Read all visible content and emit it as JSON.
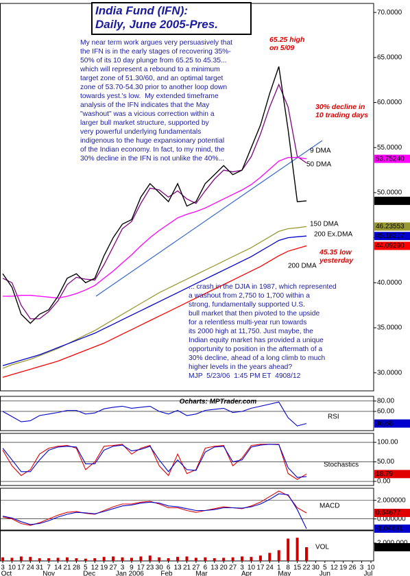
{
  "chart_data": [
    {
      "type": "line",
      "title": "India Fund (IFN):",
      "subtitle": "Daily, June 2005-Pres.",
      "text_blocks": [
        "My near term work argues very persuasively that\nthe IFN is in the early stages of recovering 35%-\n50% of its 10 day plunge from 65.25 to 45.35...\nwhich will represent a rebound to a minimum\ntarget zone of 51.30/60, and an optimal target\nzone of 53.70-54.30 prior to another loop down\ntowards yest.'s low.  My extended timeframe\nanalysis of the IFN indicates that the May\n\"washout\" was a vicious correction within a\nlarger bull market structure, supported by\nvery powerful underlying fundamentals\nindigenous to the huge expansionary potential\nof the Indian economy. In fact, to my mind, the\n30% decline in the IFN is not unlike the 40%...",
        "... crash in the DJIA in 1987, which represented\na washout from 2,750 to 1,700 within a\nstrong, fundamentally supported U.S.\nbull market that then pivoted to the upside\nfor a relentless multi-year run towards\nits 2000 high at 11,750. Just maybe, the\nIndian equity market has provided a unique\nopportunity to position in the aftermath of a\n30% decline, ahead of a long climb to much\nhigher levels in the years ahead?\nMJP  5/23/06  1:45 PM ET  4908/12"
      ],
      "annotations": [
        {
          "text": "65.25 high\non 5/09",
          "color": "#e00000"
        },
        {
          "text": "30% decline in\n10 trading days",
          "color": "#e00000"
        },
        {
          "text": "45.35 low\nyesterday",
          "color": "#e00000"
        }
      ],
      "x": [
        0,
        1,
        2,
        3,
        4,
        5,
        6,
        7,
        8,
        9,
        10,
        11,
        12,
        13,
        14,
        15,
        16,
        17,
        18,
        19,
        20,
        21,
        22,
        23,
        24,
        25,
        26,
        27,
        28,
        29,
        30,
        31,
        32,
        33
      ],
      "values": [
        41,
        39.5,
        36.5,
        35.5,
        36.5,
        37,
        38.5,
        40.5,
        41,
        40,
        40.5,
        43,
        45,
        46.5,
        47,
        49.5,
        51,
        50,
        49,
        51,
        48.5,
        49,
        51,
        52,
        53,
        52,
        52.5,
        55,
        57.5,
        61,
        64,
        57,
        49,
        49.09
      ],
      "color": "#000000",
      "end_label": "49.0900",
      "series": [
        {
          "name": "9 DMA",
          "color": "#800080",
          "end_label": null,
          "values": [
            40.5,
            40,
            37.5,
            36,
            36,
            36.8,
            38,
            39.8,
            40.6,
            40.4,
            40.3,
            42,
            44,
            46,
            46.8,
            48.8,
            50.5,
            50.3,
            49.5,
            50.2,
            49.3,
            48.8,
            50.2,
            51.5,
            52.5,
            52.3,
            52.5,
            54,
            56.5,
            59.5,
            62,
            59.5,
            54,
            53.3
          ]
        },
        {
          "name": "50 DMA",
          "color": "#ff00ff",
          "end_label": "53.75240",
          "values": [
            38.5,
            38.5,
            38.6,
            38.6,
            38.5,
            38.4,
            38.3,
            38.5,
            38.8,
            39.2,
            39.7,
            40.5,
            41.3,
            42.2,
            43.1,
            44.1,
            45,
            45.8,
            46.5,
            47.2,
            47.6,
            47.9,
            48.3,
            48.8,
            49.3,
            49.8,
            50.3,
            50.9,
            51.7,
            52.6,
            53.5,
            53.9,
            53.9,
            53.7524
          ]
        },
        {
          "name": "150 DMA",
          "color": "#999933",
          "end_label": "46.23553",
          "values": [
            30.5,
            30.9,
            31.2,
            31.5,
            31.9,
            32.3,
            32.7,
            33.2,
            33.7,
            34.2,
            34.7,
            35.3,
            35.9,
            36.5,
            37.1,
            37.7,
            38.3,
            38.9,
            39.4,
            39.9,
            40.4,
            40.9,
            41.4,
            41.9,
            42.4,
            42.9,
            43.4,
            43.9,
            44.5,
            45.1,
            45.7,
            46.0,
            46.1,
            46.23553
          ]
        },
        {
          "name": "200 Ex.DMA",
          "color": "#0000cc",
          "end_label": "45.18217",
          "values": [
            30.8,
            31.1,
            31.4,
            31.7,
            32.0,
            32.4,
            32.8,
            33.2,
            33.6,
            34.0,
            34.4,
            34.9,
            35.4,
            35.9,
            36.4,
            36.9,
            37.4,
            37.9,
            38.4,
            38.9,
            39.4,
            39.9,
            40.4,
            40.9,
            41.4,
            41.9,
            42.4,
            42.9,
            43.5,
            44.1,
            44.7,
            45.0,
            45.1,
            45.18217
          ]
        },
        {
          "name": "200 DMA",
          "color": "#ff0000",
          "end_label": "44.09290",
          "values": [
            29.5,
            29.8,
            30.1,
            30.4,
            30.7,
            31.0,
            31.3,
            31.7,
            32.1,
            32.5,
            32.9,
            33.3,
            33.8,
            34.3,
            34.8,
            35.3,
            35.8,
            36.3,
            36.8,
            37.3,
            37.8,
            38.3,
            38.8,
            39.3,
            39.8,
            40.3,
            40.8,
            41.3,
            41.8,
            42.4,
            43.0,
            43.5,
            43.8,
            44.0929
          ]
        }
      ],
      "xlim": [
        -0.3,
        40.3
      ],
      "ylim": [
        28,
        71
      ],
      "grid": false,
      "yticks": [
        {
          "value": 70,
          "label": "70.0000"
        },
        {
          "value": 65,
          "label": "65.0000"
        },
        {
          "value": 60,
          "label": "60.0000"
        },
        {
          "value": 55,
          "label": "55.0000"
        },
        {
          "value": 50,
          "label": "50.0000"
        },
        {
          "value": 45,
          "label": "45.0000"
        },
        {
          "value": 40,
          "label": "40.0000"
        },
        {
          "value": 35,
          "label": "35.0000"
        },
        {
          "value": 30,
          "label": "30.0000"
        }
      ]
    },
    {
      "type": "line",
      "title": "RSI",
      "source": "Ocharts: MPTrader.com",
      "x": [
        0,
        1,
        2,
        3,
        4,
        5,
        6,
        7,
        8,
        9,
        10,
        11,
        12,
        13,
        14,
        15,
        16,
        17,
        18,
        19,
        20,
        21,
        22,
        23,
        24,
        25,
        26,
        27,
        28,
        29,
        30,
        31,
        32,
        33
      ],
      "series": [
        {
          "color": "#0000cc",
          "end_label": "36.68",
          "values": [
            60,
            50,
            40,
            42,
            52,
            55,
            58,
            62,
            62,
            55,
            57,
            65,
            68,
            70,
            66,
            68,
            70,
            60,
            55,
            62,
            52,
            55,
            62,
            64,
            66,
            58,
            60,
            66,
            70,
            74,
            78,
            48,
            32,
            36.68
          ]
        }
      ],
      "xlim": [
        -0.3,
        40.3
      ],
      "ylim": [
        23,
        89
      ],
      "grid": true,
      "yticks": [
        {
          "value": 80,
          "label": "80.00"
        },
        {
          "value": 60,
          "label": "60.00"
        }
      ]
    },
    {
      "type": "line",
      "title": "Stochastics",
      "x": [
        0,
        1,
        2,
        3,
        4,
        5,
        6,
        7,
        8,
        9,
        10,
        11,
        12,
        13,
        14,
        15,
        16,
        17,
        18,
        19,
        20,
        21,
        22,
        23,
        24,
        25,
        26,
        27,
        28,
        29,
        30,
        31,
        32,
        33
      ],
      "series": [
        {
          "color": "#e00000",
          "end_label": "18.79",
          "values": [
            80,
            40,
            15,
            30,
            70,
            85,
            90,
            92,
            85,
            30,
            50,
            90,
            92,
            95,
            70,
            85,
            92,
            40,
            15,
            70,
            20,
            30,
            85,
            90,
            92,
            40,
            60,
            92,
            95,
            95,
            95,
            20,
            5,
            18.79
          ]
        },
        {
          "color": "#0000cc",
          "end_label": null,
          "values": [
            85,
            55,
            25,
            25,
            55,
            80,
            88,
            90,
            88,
            45,
            45,
            80,
            90,
            93,
            78,
            82,
            90,
            55,
            25,
            55,
            30,
            28,
            75,
            88,
            90,
            50,
            55,
            88,
            93,
            95,
            94,
            35,
            10,
            12.5
          ]
        }
      ],
      "xlim": [
        -0.3,
        40.3
      ],
      "ylim": [
        -10.5,
        123
      ],
      "grid": true,
      "yticks": [
        {
          "value": 100,
          "label": "100.00"
        },
        {
          "value": 50,
          "label": "50.00"
        },
        {
          "value": 0,
          "label": "0.00"
        }
      ]
    },
    {
      "type": "line",
      "title": "MACD",
      "x": [
        0,
        1,
        2,
        3,
        4,
        5,
        6,
        7,
        8,
        9,
        10,
        11,
        12,
        13,
        14,
        15,
        16,
        17,
        18,
        19,
        20,
        21,
        22,
        23,
        24,
        25,
        26,
        27,
        28,
        29,
        30,
        31,
        32,
        33
      ],
      "series": [
        {
          "color": "#e00000",
          "end_label": "0.64677",
          "values": [
            0.2,
            0,
            -0.5,
            -0.7,
            -0.4,
            0,
            0.4,
            0.7,
            0.8,
            0.6,
            0.5,
            0.9,
            1.3,
            1.6,
            1.6,
            1.8,
            1.9,
            1.6,
            1.2,
            1.2,
            0.9,
            0.7,
            0.9,
            1.1,
            1.3,
            1.2,
            1.1,
            1.4,
            1.8,
            2.4,
            3.0,
            2.5,
            1.2,
            0.64677
          ]
        },
        {
          "color": "#0000cc",
          "end_label": "-1.04891",
          "values": [
            0.3,
            0.1,
            -0.3,
            -0.6,
            -0.5,
            -0.2,
            0.2,
            0.5,
            0.7,
            0.65,
            0.55,
            0.8,
            1.1,
            1.4,
            1.5,
            1.7,
            1.8,
            1.7,
            1.4,
            1.3,
            1.1,
            0.9,
            0.9,
            1.0,
            1.2,
            1.2,
            1.15,
            1.3,
            1.6,
            2.1,
            2.7,
            2.6,
            1.0,
            -1.04891
          ]
        }
      ],
      "xlim": [
        -0.3,
        40.3
      ],
      "ylim": [
        -1.2,
        3.3
      ],
      "grid": true,
      "yticks": [
        {
          "value": 2,
          "label": "2.000000"
        },
        {
          "value": 0,
          "label": "0.000000"
        }
      ]
    },
    {
      "type": "bar",
      "title": "VOL",
      "color": "#cc0000",
      "end_label": "1,535,200",
      "x": [
        0,
        1,
        2,
        3,
        4,
        5,
        6,
        7,
        8,
        9,
        10,
        11,
        12,
        13,
        14,
        15,
        16,
        17,
        18,
        19,
        20,
        21,
        22,
        23,
        24,
        25,
        26,
        27,
        28,
        29,
        30,
        31,
        32,
        33
      ],
      "values": [
        400000,
        350000,
        500000,
        450000,
        300000,
        300000,
        350000,
        400000,
        300000,
        250000,
        300000,
        450000,
        500000,
        400000,
        350000,
        500000,
        600000,
        400000,
        300000,
        450000,
        500000,
        350000,
        400000,
        300000,
        350000,
        400000,
        500000,
        450000,
        600000,
        900000,
        1200000,
        2500000,
        2600000,
        1535200
      ],
      "xlim": [
        -0.3,
        40.3
      ],
      "ylim": [
        0,
        3380000
      ],
      "grid": false,
      "yticks": [
        {
          "value": 2000000,
          "label": "2,000,000"
        }
      ],
      "xticks": [
        {
          "value": 0,
          "label": "3"
        },
        {
          "value": 1,
          "label": "10"
        },
        {
          "value": 2,
          "label": "17"
        },
        {
          "value": 3,
          "label": "24"
        },
        {
          "value": 4,
          "label": "31"
        },
        {
          "value": 5,
          "label": "7"
        },
        {
          "value": 6,
          "label": "14"
        },
        {
          "value": 7,
          "label": "21"
        },
        {
          "value": 8,
          "label": "28"
        },
        {
          "value": 9,
          "label": "5"
        },
        {
          "value": 10,
          "label": "12"
        },
        {
          "value": 11,
          "label": "19"
        },
        {
          "value": 12,
          "label": "27"
        },
        {
          "value": 13,
          "label": "3"
        },
        {
          "value": 14,
          "label": "9"
        },
        {
          "value": 15,
          "label": "17"
        },
        {
          "value": 16,
          "label": "23"
        },
        {
          "value": 17,
          "label": "30"
        },
        {
          "value": 18,
          "label": "6"
        },
        {
          "value": 19,
          "label": "13"
        },
        {
          "value": 20,
          "label": "21"
        },
        {
          "value": 21,
          "label": "27"
        },
        {
          "value": 22,
          "label": "6"
        },
        {
          "value": 23,
          "label": "13"
        },
        {
          "value": 24,
          "label": "20"
        },
        {
          "value": 25,
          "label": "27"
        },
        {
          "value": 26,
          "label": "3"
        },
        {
          "value": 27,
          "label": "10"
        },
        {
          "value": 28,
          "label": "17"
        },
        {
          "value": 29,
          "label": "24"
        },
        {
          "value": 30,
          "label": "1"
        },
        {
          "value": 31,
          "label": "8"
        },
        {
          "value": 32,
          "label": "15"
        },
        {
          "value": 33,
          "label": "22"
        },
        {
          "value": 34,
          "label": "30"
        },
        {
          "value": 35,
          "label": "5"
        },
        {
          "value": 36,
          "label": "12"
        },
        {
          "value": 37,
          "label": "19"
        },
        {
          "value": 38,
          "label": "26"
        },
        {
          "value": 39,
          "label": "3"
        },
        {
          "value": 40,
          "label": "10"
        }
      ],
      "month_ticks": [
        {
          "value": 0.4,
          "label": "Oct"
        },
        {
          "value": 5,
          "label": "Nov"
        },
        {
          "value": 9.4,
          "label": "Dec"
        },
        {
          "value": 13.8,
          "label": "Jan 2006"
        },
        {
          "value": 17.8,
          "label": "Feb"
        },
        {
          "value": 21.6,
          "label": "Mar"
        },
        {
          "value": 26.5,
          "label": "Apr"
        },
        {
          "value": 30.6,
          "label": "May"
        },
        {
          "value": 35,
          "label": "Jun"
        },
        {
          "value": 39.7,
          "label": "Jul"
        }
      ]
    }
  ]
}
